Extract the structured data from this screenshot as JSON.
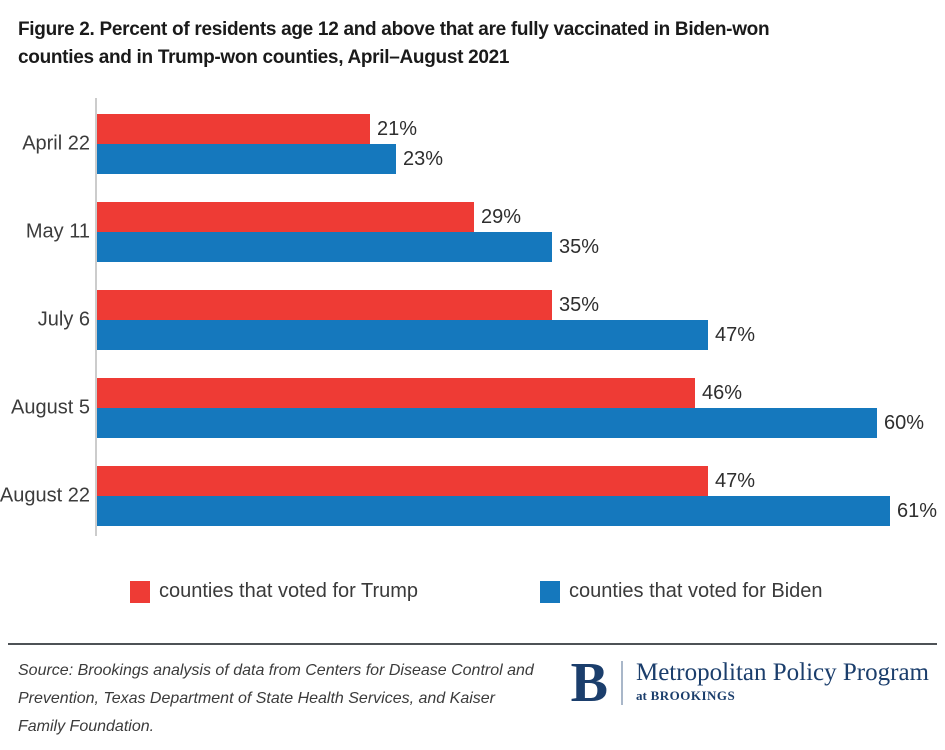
{
  "title": {
    "line1": "Figure 2. Percent of residents age 12 and above that are fully vaccinated in Biden-won",
    "line2": "counties and in Trump-won counties, April–August 2021"
  },
  "chart_data": {
    "type": "bar",
    "orientation": "horizontal",
    "title": "Figure 2. Percent of residents age 12 and above that are fully vaccinated in Biden-won counties and in Trump-won counties, April–August 2021",
    "categories": [
      "April 22",
      "May 11",
      "July 6",
      "August 5",
      "August 22"
    ],
    "series": [
      {
        "name": "counties that voted for Trump",
        "color": "#ee3b35",
        "values": [
          21,
          29,
          35,
          46,
          47
        ]
      },
      {
        "name": "counties that voted for Biden",
        "color": "#1578bd",
        "values": [
          23,
          35,
          47,
          60,
          61
        ]
      }
    ],
    "value_suffix": "%",
    "xlim": [
      0,
      65
    ],
    "grid": false,
    "legend_position": "bottom",
    "data_labels": true
  },
  "legend": {
    "items": [
      {
        "label": "counties that voted for Trump",
        "color": "#ee3b35"
      },
      {
        "label": "counties that voted for Biden",
        "color": "#1578bd"
      }
    ]
  },
  "footer": {
    "source": "Source: Brookings analysis of data from Centers for Disease Control and Prevention, Texas Department of State Health Services, and Kaiser Family Foundation.",
    "logo": {
      "monogram": "B",
      "program": "Metropolitan Policy Program",
      "sub_prefix": "at",
      "sub_name": "BROOKINGS"
    }
  },
  "colors": {
    "trump_red": "#ee3b35",
    "biden_blue": "#1578bd",
    "brookings_navy": "#1b3e6c",
    "axis_gray": "#cccccc"
  }
}
